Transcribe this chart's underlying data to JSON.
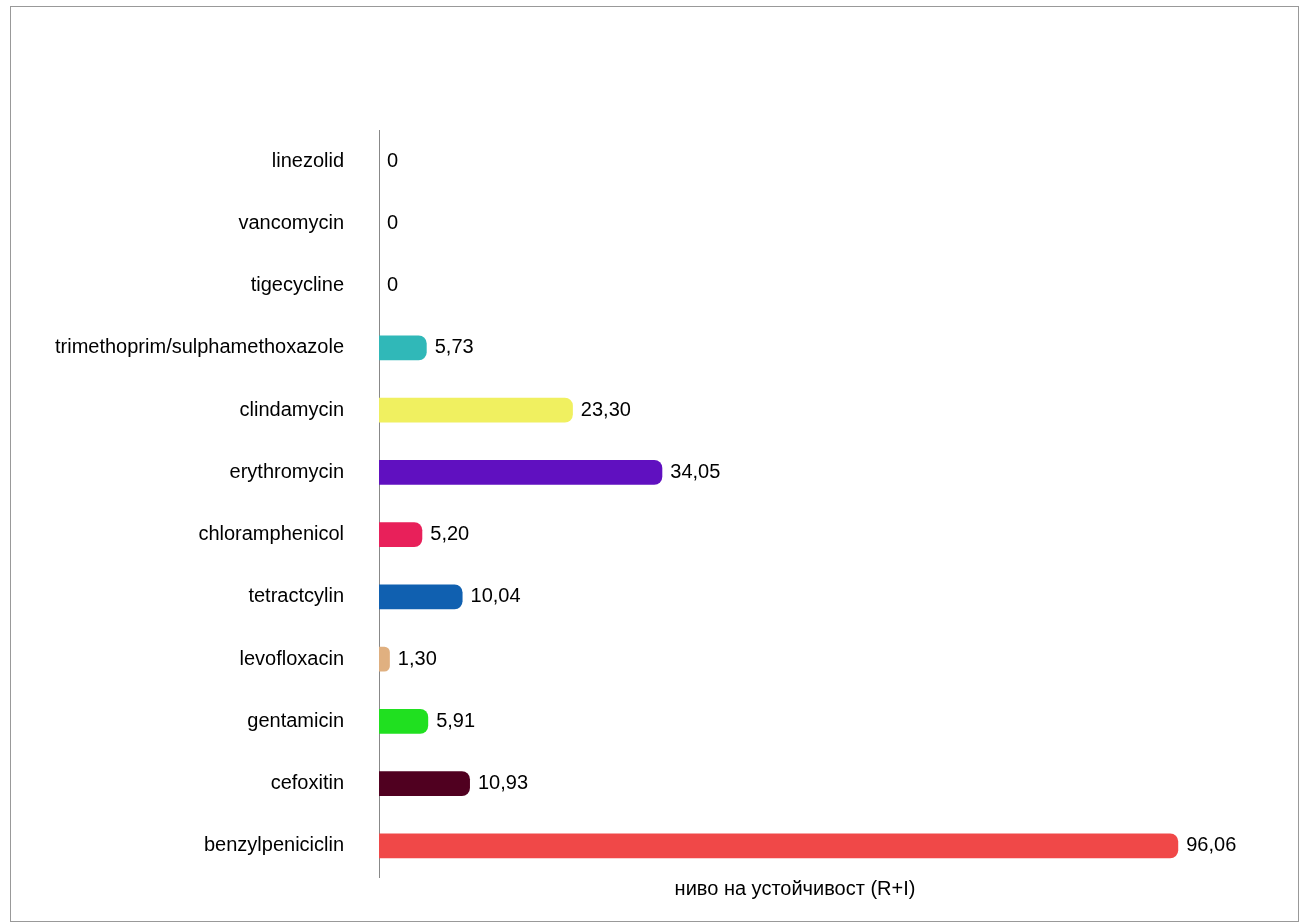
{
  "chart_data": {
    "type": "bar",
    "orientation": "horizontal",
    "xlabel": "ниво на устойчивост (R+I)",
    "categories": [
      "linezolid",
      "vancomycin",
      "tigecycline",
      "trimethoprim/sulphamethoxazole",
      "clindamycin",
      "erythromycin",
      "chloramphenicol",
      "tetractcylin",
      "levofloxacin",
      "gentamicin",
      "cefoxitin",
      "benzylpeniciclin"
    ],
    "values": [
      0,
      0,
      0,
      5.73,
      23.3,
      34.05,
      5.2,
      10.04,
      1.3,
      5.91,
      10.93,
      96.06
    ],
    "value_labels": [
      "0",
      "0",
      "0",
      "5,73",
      "23,30",
      "34,05",
      "5,20",
      "10,04",
      "1,30",
      "5,91",
      "10,93",
      "96,06"
    ],
    "colors": [
      "#a8a8d8",
      "#c06010",
      "#0a5a50",
      "#30b8b8",
      "#f0f060",
      "#6010c0",
      "#e8205a",
      "#1060b0",
      "#e0b080",
      "#20e020",
      "#500020",
      "#f04848"
    ],
    "grid": false,
    "legend": false,
    "tick_labels": "y"
  }
}
